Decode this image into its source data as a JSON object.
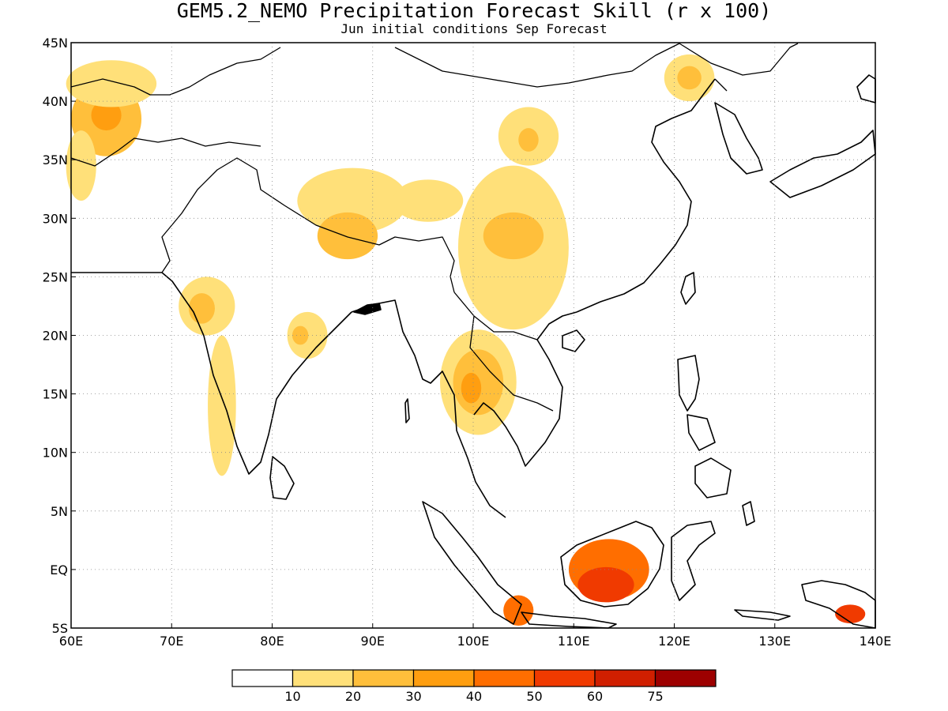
{
  "title": "GEM5.2_NEMO Precipitation Forecast Skill (r x 100)",
  "subtitle": "Jun initial conditions  Sep Forecast",
  "axes": {
    "lon_labels": [
      "60E",
      "70E",
      "80E",
      "90E",
      "100E",
      "110E",
      "120E",
      "130E",
      "140E"
    ],
    "lat_labels": [
      "45N",
      "40N",
      "35N",
      "30N",
      "25N",
      "20N",
      "15N",
      "10N",
      "5N",
      "EQ",
      "5S"
    ],
    "lon_range": [
      60,
      140
    ],
    "lat_range": [
      -5,
      45
    ],
    "grid": "dotted"
  },
  "legend": {
    "labels": [
      "10",
      "20",
      "30",
      "40",
      "50",
      "60",
      "75"
    ],
    "colors": [
      "#ffffff",
      "#ffe079",
      "#ffbf3b",
      "#ff9e10",
      "#ff6e00",
      "#f03a00",
      "#d01f00",
      "#9d0000"
    ]
  },
  "chart_data": {
    "type": "heatmap",
    "title": "GEM5.2_NEMO Precipitation Forecast Skill (r x 100)",
    "subtitle": "Jun initial conditions  Sep Forecast",
    "x_range": [
      60,
      140
    ],
    "y_range": [
      -5,
      45
    ],
    "contour_levels": [
      10,
      20,
      30,
      40,
      50,
      60,
      75
    ],
    "regions": [
      {
        "lon": 63.5,
        "lat": 38.5,
        "rx": 3.5,
        "ry": 3.2,
        "level": 20
      },
      {
        "lon": 63.5,
        "lat": 38.8,
        "rx": 1.5,
        "ry": 1.3,
        "level": 30
      },
      {
        "lon": 61.0,
        "lat": 34.5,
        "rx": 1.5,
        "ry": 3.0,
        "level": 10
      },
      {
        "lon": 64.0,
        "lat": 41.5,
        "rx": 4.5,
        "ry": 2.0,
        "level": 10
      },
      {
        "lon": 88.0,
        "lat": 31.5,
        "rx": 5.5,
        "ry": 2.8,
        "level": 10
      },
      {
        "lon": 95.5,
        "lat": 31.5,
        "rx": 3.5,
        "ry": 1.8,
        "level": 10
      },
      {
        "lon": 104.0,
        "lat": 27.5,
        "rx": 5.5,
        "ry": 7.0,
        "level": 10
      },
      {
        "lon": 104.0,
        "lat": 28.5,
        "rx": 3.0,
        "ry": 2.0,
        "level": 20
      },
      {
        "lon": 105.5,
        "lat": 37.0,
        "rx": 3.0,
        "ry": 2.5,
        "level": 10
      },
      {
        "lon": 105.5,
        "lat": 36.7,
        "rx": 1.0,
        "ry": 1.0,
        "level": 20
      },
      {
        "lon": 87.5,
        "lat": 28.5,
        "rx": 3.0,
        "ry": 2.0,
        "level": 20
      },
      {
        "lon": 73.5,
        "lat": 22.5,
        "rx": 2.8,
        "ry": 2.5,
        "level": 10
      },
      {
        "lon": 73.0,
        "lat": 22.3,
        "rx": 1.3,
        "ry": 1.3,
        "level": 20
      },
      {
        "lon": 75.0,
        "lat": 14.0,
        "rx": 1.4,
        "ry": 6.0,
        "level": 10
      },
      {
        "lon": 83.5,
        "lat": 20.0,
        "rx": 2.0,
        "ry": 2.0,
        "level": 10
      },
      {
        "lon": 82.8,
        "lat": 20.0,
        "rx": 0.8,
        "ry": 0.8,
        "level": 20
      },
      {
        "lon": 100.5,
        "lat": 16.0,
        "rx": 3.8,
        "ry": 4.5,
        "level": 10
      },
      {
        "lon": 100.5,
        "lat": 16.0,
        "rx": 2.5,
        "ry": 2.8,
        "level": 20
      },
      {
        "lon": 99.8,
        "lat": 15.5,
        "rx": 1.0,
        "ry": 1.3,
        "level": 30
      },
      {
        "lon": 121.5,
        "lat": 42.0,
        "rx": 2.5,
        "ry": 2.0,
        "level": 10
      },
      {
        "lon": 121.5,
        "lat": 42.0,
        "rx": 1.2,
        "ry": 1.0,
        "level": 20
      },
      {
        "lon": 113.5,
        "lat": 0.0,
        "rx": 4.0,
        "ry": 2.6,
        "level": 40
      },
      {
        "lon": 113.2,
        "lat": -1.3,
        "rx": 2.8,
        "ry": 1.5,
        "level": 50
      },
      {
        "lon": 104.5,
        "lat": -3.5,
        "rx": 1.5,
        "ry": 1.3,
        "level": 40
      },
      {
        "lon": 137.5,
        "lat": -3.8,
        "rx": 1.5,
        "ry": 0.8,
        "level": 50
      }
    ]
  }
}
